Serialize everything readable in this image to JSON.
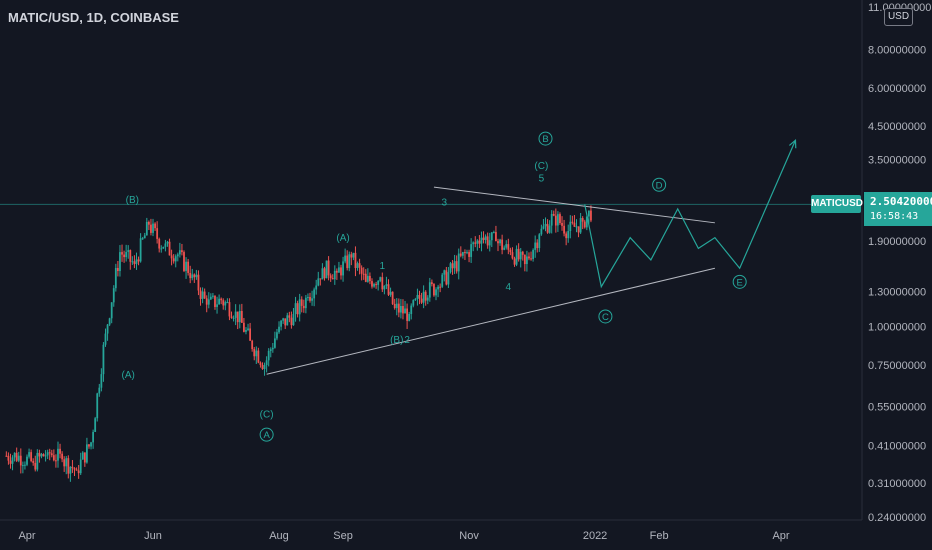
{
  "header": {
    "symbol_title": "MATIC/USD, 1D, COINBASE"
  },
  "price_axis": {
    "currency": "USD",
    "label": "MATICUSD",
    "last_price": "2.50420000",
    "countdown": "16:58:43"
  },
  "colors": {
    "background": "#131722",
    "up": "#26a69a",
    "down": "#ef5350",
    "wave_label": "#26a69a",
    "trendline": "#d1d4dc",
    "projection": "#26a69a",
    "axis_text": "#b2b5be"
  },
  "chart_data": {
    "type": "candlestick",
    "title": "MATIC/USD, 1D, COINBASE",
    "x_axis_ticks": [
      "Apr",
      "Jun",
      "Aug",
      "Sep",
      "Nov",
      "2022",
      "Feb",
      "Apr"
    ],
    "x_tick_dates": [
      "2021-04-01",
      "2021-06-01",
      "2021-08-01",
      "2021-09-01",
      "2021-11-01",
      "2022-01-01",
      "2022-02-01",
      "2022-04-01"
    ],
    "y_axis_ticks": [
      "11.00000000",
      "8.00000000",
      "6.00000000",
      "4.50000000",
      "3.50000000",
      "2.50420000",
      "1.90000000",
      "1.30000000",
      "1.00000000",
      "0.75000000",
      "0.55000000",
      "0.41000000",
      "0.31000000",
      "0.24000000"
    ],
    "y_scale": "log",
    "ylim": [
      0.24,
      11.0
    ],
    "last_price": 2.5042,
    "grid": false,
    "weekly_closes": [
      {
        "date": "2021-03-22",
        "close": 0.38
      },
      {
        "date": "2021-03-29",
        "close": 0.36
      },
      {
        "date": "2021-04-05",
        "close": 0.39
      },
      {
        "date": "2021-04-12",
        "close": 0.37
      },
      {
        "date": "2021-04-19",
        "close": 0.34
      },
      {
        "date": "2021-04-26",
        "close": 0.42
      },
      {
        "date": "2021-05-03",
        "close": 0.95
      },
      {
        "date": "2021-05-10",
        "close": 1.75
      },
      {
        "date": "2021-05-17",
        "close": 1.6
      },
      {
        "date": "2021-05-24",
        "close": 2.15
      },
      {
        "date": "2021-05-31",
        "close": 1.82
      },
      {
        "date": "2021-06-07",
        "close": 1.72
      },
      {
        "date": "2021-06-14",
        "close": 1.48
      },
      {
        "date": "2021-06-21",
        "close": 1.18
      },
      {
        "date": "2021-06-28",
        "close": 1.22
      },
      {
        "date": "2021-07-05",
        "close": 1.12
      },
      {
        "date": "2021-07-12",
        "close": 0.9
      },
      {
        "date": "2021-07-19",
        "close": 0.75
      },
      {
        "date": "2021-07-26",
        "close": 1.0
      },
      {
        "date": "2021-08-02",
        "close": 1.1
      },
      {
        "date": "2021-08-09",
        "close": 1.25
      },
      {
        "date": "2021-08-16",
        "close": 1.55
      },
      {
        "date": "2021-08-23",
        "close": 1.5
      },
      {
        "date": "2021-08-30",
        "close": 1.68
      },
      {
        "date": "2021-09-06",
        "close": 1.4
      },
      {
        "date": "2021-09-13",
        "close": 1.45
      },
      {
        "date": "2021-09-20",
        "close": 1.15
      },
      {
        "date": "2021-09-27",
        "close": 1.1
      },
      {
        "date": "2021-10-04",
        "close": 1.3
      },
      {
        "date": "2021-10-11",
        "close": 1.35
      },
      {
        "date": "2021-10-18",
        "close": 1.55
      },
      {
        "date": "2021-10-25",
        "close": 1.75
      },
      {
        "date": "2021-11-01",
        "close": 1.95
      },
      {
        "date": "2021-11-08",
        "close": 1.9
      },
      {
        "date": "2021-11-15",
        "close": 1.75
      },
      {
        "date": "2021-11-22",
        "close": 1.6
      },
      {
        "date": "2021-11-29",
        "close": 2.0
      },
      {
        "date": "2021-12-06",
        "close": 2.3
      },
      {
        "date": "2021-12-13",
        "close": 2.05
      },
      {
        "date": "2021-12-20",
        "close": 2.2
      },
      {
        "date": "2021-12-27",
        "close": 2.5042
      }
    ],
    "trendlines": [
      {
        "name": "upper-trendline",
        "from": {
          "date": "2021-10-15",
          "price": 2.85
        },
        "to": {
          "date": "2022-02-28",
          "price": 2.18
        }
      },
      {
        "name": "lower-trendline",
        "from": {
          "date": "2021-07-26",
          "price": 0.7
        },
        "to": {
          "date": "2022-02-28",
          "price": 1.55
        }
      }
    ],
    "projection_path": [
      {
        "date": "2021-12-27",
        "price": 2.5
      },
      {
        "date": "2022-01-04",
        "price": 1.35
      },
      {
        "date": "2022-01-18",
        "price": 1.95
      },
      {
        "date": "2022-01-28",
        "price": 1.65
      },
      {
        "date": "2022-02-10",
        "price": 2.42
      },
      {
        "date": "2022-02-20",
        "price": 1.8
      },
      {
        "date": "2022-02-28",
        "price": 1.95
      },
      {
        "date": "2022-03-12",
        "price": 1.55
      },
      {
        "date": "2022-04-08",
        "price": 4.05
      }
    ],
    "wave_labels": [
      {
        "text": "(B)",
        "date": "2021-05-22",
        "price": 2.6,
        "circled": false
      },
      {
        "text": "(A)",
        "date": "2021-05-20",
        "price": 0.7,
        "circled": false
      },
      {
        "text": "(C)",
        "date": "2021-07-26",
        "price": 0.52,
        "circled": false
      },
      {
        "text": "A",
        "date": "2021-07-26",
        "price": 0.445,
        "circled": true
      },
      {
        "text": "(A)",
        "date": "2021-09-01",
        "price": 1.95,
        "circled": false
      },
      {
        "text": "1",
        "date": "2021-09-20",
        "price": 1.58,
        "circled": false
      },
      {
        "text": "(B)",
        "date": "2021-09-27",
        "price": 0.91,
        "circled": false
      },
      {
        "text": "2",
        "date": "2021-10-02",
        "price": 0.91,
        "circled": false
      },
      {
        "text": "3",
        "date": "2021-10-20",
        "price": 2.55,
        "circled": false
      },
      {
        "text": "4",
        "date": "2021-11-20",
        "price": 1.35,
        "circled": false
      },
      {
        "text": "5",
        "date": "2021-12-06",
        "price": 3.05,
        "circled": false
      },
      {
        "text": "(C)",
        "date": "2021-12-06",
        "price": 3.35,
        "circled": false
      },
      {
        "text": "B",
        "date": "2021-12-08",
        "price": 4.1,
        "circled": true
      },
      {
        "text": "C",
        "date": "2022-01-06",
        "price": 1.08,
        "circled": true
      },
      {
        "text": "D",
        "date": "2022-02-01",
        "price": 2.9,
        "circled": true
      },
      {
        "text": "E",
        "date": "2022-03-12",
        "price": 1.4,
        "circled": true
      }
    ]
  }
}
